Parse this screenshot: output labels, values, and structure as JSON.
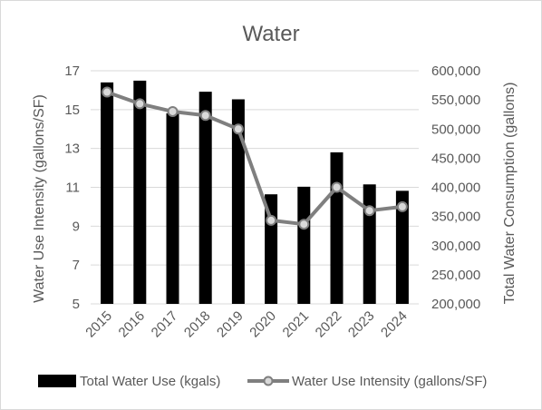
{
  "chart_data": {
    "type": "bar",
    "title": "Water",
    "categories": [
      "2015",
      "2016",
      "2017",
      "2018",
      "2019",
      "2020",
      "2021",
      "2022",
      "2023",
      "2024"
    ],
    "series": [
      {
        "name": "Total Water Use (kgals)",
        "type": "bar",
        "axis": "right",
        "color": "#000000",
        "values": [
          580000,
          583000,
          527000,
          564000,
          551000,
          388000,
          401000,
          460000,
          405000,
          394000
        ]
      },
      {
        "name": "Water Use Intensity (gallons/SF)",
        "type": "line",
        "axis": "left",
        "color": "#7f7f7f",
        "marker_fill": "#d9d9d9",
        "values": [
          15.9,
          15.3,
          14.9,
          14.7,
          14.0,
          9.3,
          9.1,
          11.0,
          9.8,
          10.0
        ]
      }
    ],
    "ylabel_left": "Water Use Intensity (gallons/SF)",
    "ylabel_right": "Total Water Consumption (gallons)",
    "yleft_range": [
      5,
      17
    ],
    "yleft_ticks": [
      "5",
      "7",
      "9",
      "11",
      "13",
      "15",
      "17"
    ],
    "yright_range": [
      200000,
      600000
    ],
    "yright_ticks": [
      "200,000",
      "250,000",
      "300,000",
      "350,000",
      "400,000",
      "450,000",
      "500,000",
      "550,000",
      "600,000"
    ],
    "grid": true,
    "legend_position": "bottom"
  }
}
